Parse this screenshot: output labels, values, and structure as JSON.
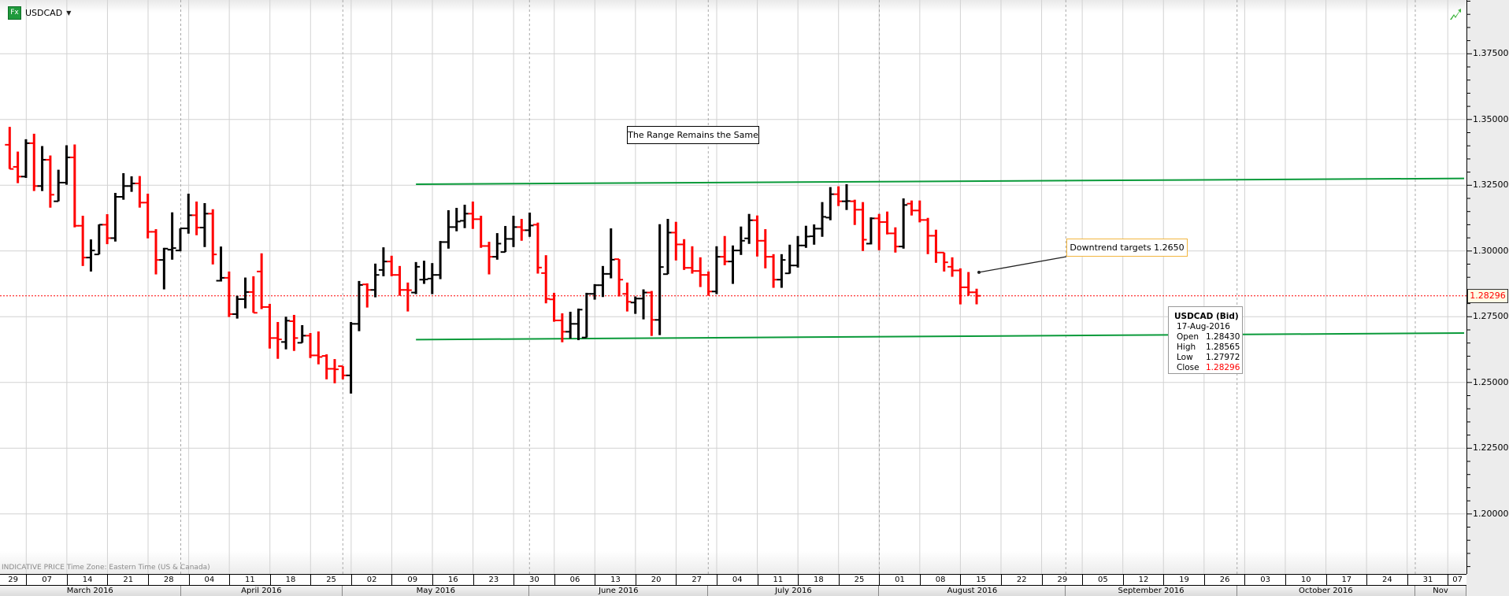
{
  "header": {
    "symbol": "USDCAD",
    "icon": "fx-icon",
    "icon_label": "Fx",
    "dropdown_icon": "caret-down-icon",
    "chart_type_icon": "trend-chart-icon"
  },
  "footer_note": "INDICATIVE PRICE   Time Zone: Eastern Time (US & Canada)",
  "colors": {
    "up": "#000000",
    "down": "#ff0000",
    "trendline": "#0a9a3a",
    "last_price": "#ff0000",
    "callout_border": "#f2b640"
  },
  "annotations": {
    "range_note": "The Range Remains the Same",
    "target_note": "Downtrend targets 1.2650"
  },
  "last_price": "1.28296",
  "tooltip": {
    "title": "USDCAD (Bid)",
    "date": "17-Aug-2016",
    "rows": [
      {
        "label": "Open",
        "value": "1.28430"
      },
      {
        "label": "High",
        "value": "1.28565"
      },
      {
        "label": "Low",
        "value": "1.27972"
      },
      {
        "label": "Close",
        "value": "1.28296"
      }
    ]
  },
  "x_axis": {
    "weeks": [
      "29",
      "07",
      "14",
      "21",
      "28",
      "04",
      "11",
      "18",
      "25",
      "02",
      "09",
      "16",
      "23",
      "30",
      "06",
      "13",
      "20",
      "27",
      "04",
      "11",
      "18",
      "25",
      "01",
      "08",
      "15",
      "22",
      "29",
      "05",
      "12",
      "19",
      "26",
      "03",
      "10",
      "17",
      "24",
      "31",
      "07"
    ],
    "months": [
      "March 2016",
      "April 2016",
      "May 2016",
      "June 2016",
      "July 2016",
      "August 2016",
      "September 2016",
      "October 2016",
      "Nov"
    ]
  },
  "chart_data": {
    "type": "ohlc",
    "title": "USDCAD",
    "xlabel": "",
    "ylabel": "",
    "ylim": [
      1.1875,
      1.3975
    ],
    "y_ticks": [
      "1.37500",
      "1.35000",
      "1.32500",
      "1.30000",
      "1.27500",
      "1.25000",
      "1.22500",
      "1.20000"
    ],
    "grid": true,
    "columns": [
      "date",
      "open",
      "high",
      "low",
      "close"
    ],
    "bars": [
      [
        "2016-03-03",
        1.3404,
        1.3472,
        1.3312,
        1.3312
      ],
      [
        "2016-03-04",
        1.332,
        1.3378,
        1.3258,
        1.3283
      ],
      [
        "2016-03-07",
        1.3283,
        1.3425,
        1.3278,
        1.341
      ],
      [
        "2016-03-08",
        1.341,
        1.3446,
        1.3228,
        1.3247
      ],
      [
        "2016-03-09",
        1.3247,
        1.3399,
        1.3228,
        1.3347
      ],
      [
        "2016-03-10",
        1.3347,
        1.3363,
        1.3165,
        1.3214
      ],
      [
        "2016-03-11",
        1.3189,
        1.3309,
        1.3189,
        1.326
      ],
      [
        "2016-03-14",
        1.326,
        1.3402,
        1.3252,
        1.3356
      ],
      [
        "2016-03-15",
        1.3356,
        1.3405,
        1.309,
        1.3096
      ],
      [
        "2016-03-16",
        1.3096,
        1.3134,
        1.2943,
        1.2975
      ],
      [
        "2016-03-17",
        1.2975,
        1.3044,
        1.2922,
        1.3002
      ],
      [
        "2016-03-18",
        1.2987,
        1.3101,
        1.2987,
        1.31
      ],
      [
        "2016-03-21",
        1.31,
        1.314,
        1.3026,
        1.3049
      ],
      [
        "2016-03-22",
        1.3049,
        1.3221,
        1.3036,
        1.3206
      ],
      [
        "2016-03-23",
        1.3206,
        1.3296,
        1.3195,
        1.3247
      ],
      [
        "2016-03-24",
        1.3247,
        1.3284,
        1.3225,
        1.3257
      ],
      [
        "2016-03-25",
        1.3257,
        1.3285,
        1.3165,
        1.3184
      ],
      [
        "2016-03-28",
        1.3184,
        1.3218,
        1.3048,
        1.3073
      ],
      [
        "2016-03-29",
        1.3073,
        1.3083,
        1.2911,
        1.2966
      ],
      [
        "2016-03-30",
        1.2966,
        1.3012,
        1.2854,
        1.3009
      ],
      [
        "2016-03-31",
        1.3005,
        1.3147,
        1.2967,
        1.3011
      ],
      [
        "2016-04-01",
        1.3002,
        1.3086,
        1.2999,
        1.3086
      ],
      [
        "2016-04-04",
        1.3086,
        1.3218,
        1.3066,
        1.3136
      ],
      [
        "2016-04-05",
        1.3136,
        1.3188,
        1.306,
        1.3089
      ],
      [
        "2016-04-06",
        1.3089,
        1.3182,
        1.3015,
        1.3142
      ],
      [
        "2016-04-07",
        1.3142,
        1.3159,
        1.2949,
        1.2987
      ],
      [
        "2016-04-08",
        1.2887,
        1.3017,
        1.2884,
        1.2898
      ],
      [
        "2016-04-11",
        1.2898,
        1.2922,
        1.2749,
        1.276
      ],
      [
        "2016-04-12",
        1.276,
        1.283,
        1.2743,
        1.2817
      ],
      [
        "2016-04-13",
        1.2817,
        1.2899,
        1.2782,
        1.2844
      ],
      [
        "2016-04-14",
        1.2844,
        1.2904,
        1.2765,
        1.2765
      ],
      [
        "2016-04-15",
        1.2922,
        1.2991,
        1.2779,
        1.2787
      ],
      [
        "2016-04-18",
        1.2787,
        1.2799,
        1.2629,
        1.2669
      ],
      [
        "2016-04-19",
        1.2669,
        1.273,
        1.259,
        1.2664
      ],
      [
        "2016-04-20",
        1.2654,
        1.275,
        1.2626,
        1.2735
      ],
      [
        "2016-04-21",
        1.2733,
        1.2757,
        1.262,
        1.2669
      ],
      [
        "2016-04-22",
        1.2651,
        1.2718,
        1.2651,
        1.2678
      ],
      [
        "2016-04-25",
        1.2678,
        1.2688,
        1.2593,
        1.2603
      ],
      [
        "2016-04-26",
        1.2603,
        1.2694,
        1.2569,
        1.2597
      ],
      [
        "2016-04-27",
        1.2601,
        1.2607,
        1.2512,
        1.2552
      ],
      [
        "2016-04-28",
        1.2552,
        1.2589,
        1.2497,
        1.255
      ],
      [
        "2016-04-29",
        1.2562,
        1.2562,
        1.2512,
        1.2527
      ],
      [
        "2016-05-02",
        1.2527,
        1.273,
        1.2458,
        1.2723
      ],
      [
        "2016-05-03",
        1.2723,
        1.2886,
        1.2695,
        1.2871
      ],
      [
        "2016-05-04",
        1.2873,
        1.2877,
        1.2785,
        1.2852
      ],
      [
        "2016-05-05",
        1.2852,
        1.2952,
        1.2824,
        1.2909
      ],
      [
        "2016-05-06",
        1.2928,
        1.3014,
        1.2904,
        1.296
      ],
      [
        "2016-05-09",
        1.296,
        1.2982,
        1.2904,
        1.2909
      ],
      [
        "2016-05-10",
        1.2909,
        1.2943,
        1.283,
        1.2852
      ],
      [
        "2016-05-11",
        1.2852,
        1.288,
        1.277,
        1.2851
      ],
      [
        "2016-05-12",
        1.2842,
        1.2958,
        1.2836,
        1.294
      ],
      [
        "2016-05-13",
        1.2891,
        1.2963,
        1.2875,
        1.2892
      ],
      [
        "2016-05-16",
        1.2895,
        1.2954,
        1.2836,
        1.2909
      ],
      [
        "2016-05-17",
        1.2909,
        1.3038,
        1.2893,
        1.3034
      ],
      [
        "2016-05-18",
        1.3034,
        1.3155,
        1.3009,
        1.3091
      ],
      [
        "2016-05-19",
        1.3091,
        1.3164,
        1.3075,
        1.3112
      ],
      [
        "2016-05-20",
        1.3115,
        1.3176,
        1.3087,
        1.3142
      ],
      [
        "2016-05-23",
        1.3142,
        1.3188,
        1.3084,
        1.3121
      ],
      [
        "2016-05-24",
        1.3121,
        1.3134,
        1.3012,
        1.3019
      ],
      [
        "2016-05-25",
        1.3019,
        1.3035,
        1.2911,
        1.2978
      ],
      [
        "2016-05-26",
        1.2978,
        1.3068,
        1.2967,
        1.3028
      ],
      [
        "2016-05-27",
        1.2996,
        1.3095,
        1.2996,
        1.3046
      ],
      [
        "2016-05-30",
        1.3046,
        1.3134,
        1.3015,
        1.3091
      ],
      [
        "2016-05-31",
        1.3091,
        1.3122,
        1.3039,
        1.3079
      ],
      [
        "2016-06-01",
        1.3079,
        1.3146,
        1.3054,
        1.3097
      ],
      [
        "2016-06-02",
        1.31,
        1.3108,
        1.2914,
        1.2937
      ],
      [
        "2016-06-03",
        1.2916,
        1.2984,
        1.2801,
        1.2818
      ],
      [
        "2016-06-06",
        1.2816,
        1.2841,
        1.2731,
        1.2736
      ],
      [
        "2016-06-07",
        1.2736,
        1.2763,
        1.2653,
        1.2693
      ],
      [
        "2016-06-08",
        1.2693,
        1.2769,
        1.2667,
        1.2723
      ],
      [
        "2016-06-09",
        1.2723,
        1.2781,
        1.2661,
        1.2777
      ],
      [
        "2016-06-10",
        1.2671,
        1.2841,
        1.2671,
        1.2837
      ],
      [
        "2016-06-13",
        1.2837,
        1.2874,
        1.2815,
        1.287
      ],
      [
        "2016-06-14",
        1.287,
        1.2943,
        1.2825,
        1.2913
      ],
      [
        "2016-06-15",
        1.2913,
        1.3086,
        1.2896,
        1.2967
      ],
      [
        "2016-06-16",
        1.2969,
        1.2969,
        1.2827,
        1.2891
      ],
      [
        "2016-06-17",
        1.2837,
        1.288,
        1.277,
        1.2807
      ],
      [
        "2016-06-20",
        1.2804,
        1.2827,
        1.2761,
        1.2819
      ],
      [
        "2016-06-21",
        1.2819,
        1.2854,
        1.274,
        1.2842
      ],
      [
        "2016-06-22",
        1.2842,
        1.2848,
        1.2677,
        1.2738
      ],
      [
        "2016-06-23",
        1.2738,
        1.3102,
        1.268,
        1.2939
      ],
      [
        "2016-06-24",
        1.2912,
        1.3122,
        1.2912,
        1.307
      ],
      [
        "2016-06-27",
        1.307,
        1.3111,
        1.2964,
        1.3025
      ],
      [
        "2016-06-28",
        1.3025,
        1.3045,
        1.2928,
        1.2936
      ],
      [
        "2016-06-29",
        1.2936,
        1.3018,
        1.2914,
        1.2924
      ],
      [
        "2016-06-30",
        1.2924,
        1.2976,
        1.2863,
        1.2909
      ],
      [
        "2016-07-01",
        1.2909,
        1.2922,
        1.283,
        1.2846
      ],
      [
        "2016-07-04",
        1.2846,
        1.3018,
        1.2836,
        1.2978
      ],
      [
        "2016-07-05",
        1.2978,
        1.3057,
        1.2946,
        1.296
      ],
      [
        "2016-07-06",
        1.296,
        1.3021,
        1.2875,
        1.3002
      ],
      [
        "2016-07-07",
        1.3002,
        1.3093,
        1.2985,
        1.3039
      ],
      [
        "2016-07-08",
        1.3048,
        1.3141,
        1.3027,
        1.3117
      ],
      [
        "2016-07-11",
        1.3117,
        1.3135,
        1.2979,
        1.3039
      ],
      [
        "2016-07-12",
        1.3039,
        1.3083,
        1.2934,
        1.2978
      ],
      [
        "2016-07-13",
        1.2978,
        1.2988,
        1.286,
        1.2891
      ],
      [
        "2016-07-14",
        1.2891,
        1.2988,
        1.286,
        1.2966
      ],
      [
        "2016-07-15",
        1.2915,
        1.3024,
        1.2914,
        1.2945
      ],
      [
        "2016-07-18",
        1.2945,
        1.3057,
        1.2937,
        1.3021
      ],
      [
        "2016-07-19",
        1.3021,
        1.3096,
        1.3012,
        1.3055
      ],
      [
        "2016-07-20",
        1.3056,
        1.3101,
        1.3024,
        1.3085
      ],
      [
        "2016-07-21",
        1.3085,
        1.3186,
        1.3054,
        1.313
      ],
      [
        "2016-07-22",
        1.3127,
        1.3243,
        1.3117,
        1.3216
      ],
      [
        "2016-07-25",
        1.3216,
        1.3246,
        1.3171,
        1.3189
      ],
      [
        "2016-07-26",
        1.3189,
        1.3254,
        1.3156,
        1.319
      ],
      [
        "2016-07-27",
        1.3189,
        1.3195,
        1.3099,
        1.3157
      ],
      [
        "2016-07-28",
        1.3157,
        1.3186,
        1.3,
        1.3043
      ],
      [
        "2016-07-29",
        1.3028,
        1.3128,
        1.3025,
        1.3124
      ],
      [
        "2016-08-01",
        1.3124,
        1.3141,
        1.3003,
        1.311
      ],
      [
        "2016-08-02",
        1.311,
        1.315,
        1.3063,
        1.3067
      ],
      [
        "2016-08-03",
        1.3067,
        1.309,
        1.2994,
        1.3017
      ],
      [
        "2016-08-04",
        1.3017,
        1.32,
        1.3009,
        1.3175
      ],
      [
        "2016-08-05",
        1.318,
        1.3192,
        1.3135,
        1.3154
      ],
      [
        "2016-08-08",
        1.3154,
        1.3192,
        1.3109,
        1.3118
      ],
      [
        "2016-08-09",
        1.3118,
        1.3126,
        1.2988,
        1.3058
      ],
      [
        "2016-08-10",
        1.3058,
        1.3081,
        1.2955,
        1.2994
      ],
      [
        "2016-08-11",
        1.2994,
        1.2994,
        1.2922,
        1.2957
      ],
      [
        "2016-08-12",
        1.294,
        1.2976,
        1.2902,
        1.2926
      ],
      [
        "2016-08-15",
        1.2926,
        1.2934,
        1.2797,
        1.2862
      ],
      [
        "2016-08-16",
        1.2862,
        1.292,
        1.283,
        1.2843
      ],
      [
        "2016-08-17",
        1.2843,
        1.28565,
        1.27972,
        1.28296
      ]
    ],
    "trendlines": [
      {
        "from": {
          "date": "2016-05-12",
          "price": 1.3254
        },
        "to": {
          "date": "2016-11-09",
          "price": 1.3276
        }
      },
      {
        "from": {
          "date": "2016-05-12",
          "price": 1.2663
        },
        "to": {
          "date": "2016-11-09",
          "price": 1.2688
        }
      }
    ],
    "arrow_anchor": {
      "date": "2016-08-17",
      "price": 1.2919
    },
    "last_price": 1.28296
  }
}
